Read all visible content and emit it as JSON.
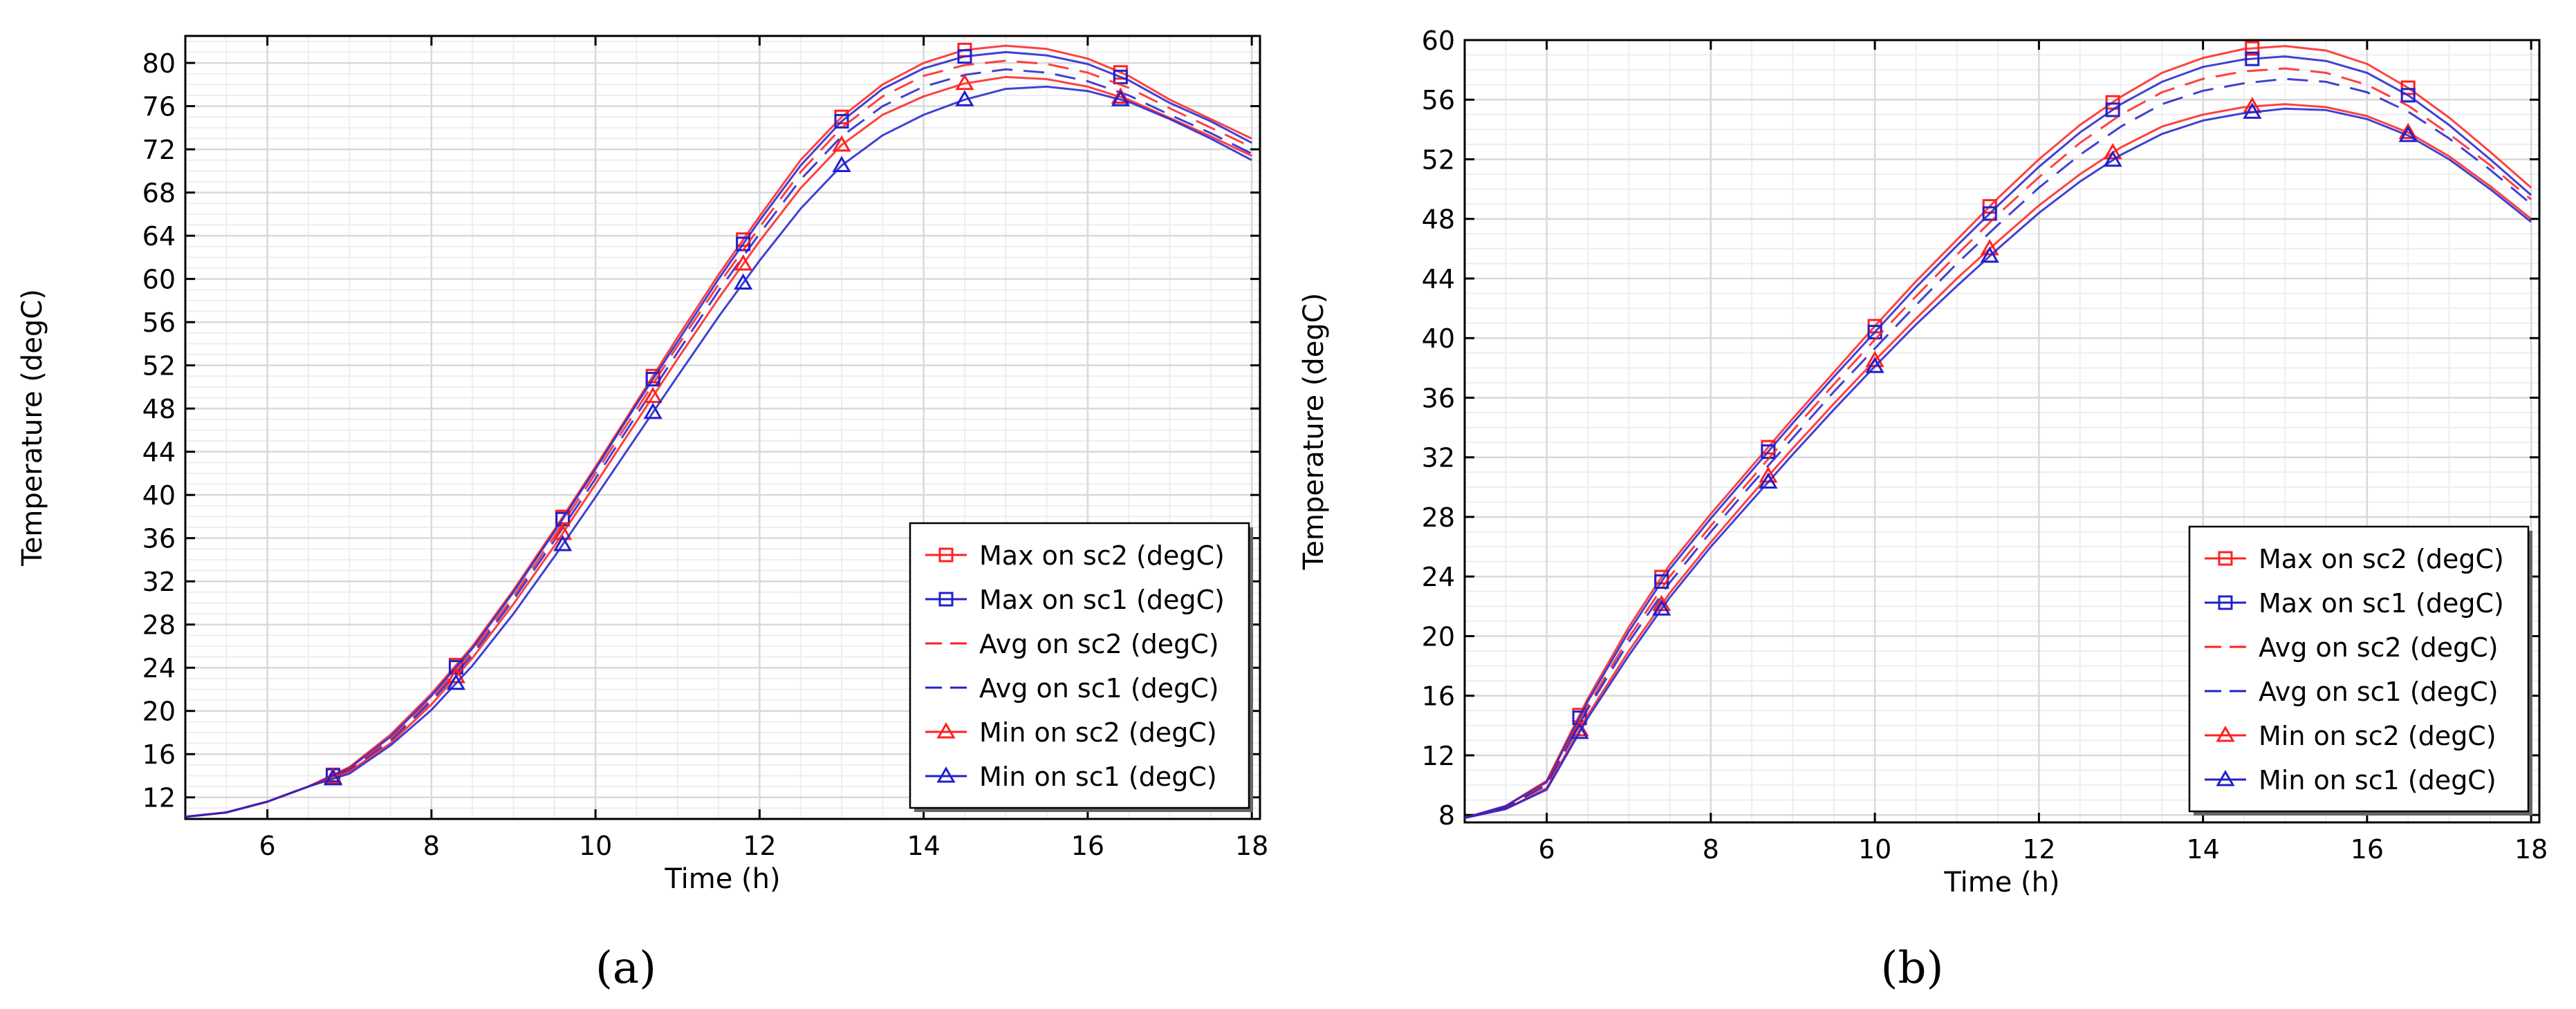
{
  "colors": {
    "sc2": "#ff2020",
    "sc1": "#2020cc",
    "grid": "#d9d9d9",
    "grid_minor": "#eeeeee",
    "axis": "#000000"
  },
  "chart_data": [
    {
      "type": "line",
      "panel_label": "(a)",
      "xlabel": "Time (h)",
      "ylabel": "Temperature (degC)",
      "xlim": [
        5,
        18.1
      ],
      "ylim": [
        10,
        82.5
      ],
      "xticks": [
        6,
        8,
        10,
        12,
        14,
        16,
        18
      ],
      "yticks": [
        12,
        16,
        20,
        24,
        28,
        32,
        36,
        40,
        44,
        48,
        52,
        56,
        60,
        64,
        68,
        72,
        76,
        80
      ],
      "x": [
        5,
        5.5,
        6,
        6.5,
        7,
        7.5,
        8,
        8.5,
        9,
        9.5,
        10,
        10.5,
        11,
        11.5,
        12,
        12.5,
        13,
        13.5,
        14,
        14.5,
        15,
        15.5,
        16,
        16.5,
        17,
        17.5,
        18
      ],
      "marker_x": [
        6.8,
        8.3,
        9.6,
        10.7,
        11.8,
        13.0,
        14.5,
        16.4
      ],
      "series": [
        {
          "name": "Max on sc2 (degC)",
          "color": "#ff2020",
          "dash": "solid",
          "marker": "square",
          "values": [
            10.2,
            10.6,
            11.6,
            13.0,
            14.8,
            17.8,
            21.6,
            26.0,
            31.2,
            36.8,
            42.6,
            48.6,
            54.6,
            60.4,
            65.8,
            71.0,
            75.0,
            78.0,
            80.0,
            81.2,
            81.6,
            81.3,
            80.4,
            78.8,
            76.6,
            74.8,
            73.0
          ]
        },
        {
          "name": "Max on sc1 (degC)",
          "color": "#2020cc",
          "dash": "solid",
          "marker": "square",
          "values": [
            10.2,
            10.6,
            11.6,
            13.0,
            14.7,
            17.6,
            21.4,
            25.8,
            31.0,
            36.6,
            42.4,
            48.4,
            54.2,
            60.0,
            65.4,
            70.5,
            74.6,
            77.6,
            79.5,
            80.6,
            81.0,
            80.7,
            79.9,
            78.4,
            76.3,
            74.6,
            72.6
          ]
        },
        {
          "name": "Avg on sc2 (degC)",
          "color": "#ff2020",
          "dash": "dash",
          "marker": "none",
          "values": [
            10.2,
            10.6,
            11.6,
            13.0,
            14.6,
            17.4,
            21.1,
            25.5,
            30.6,
            36.2,
            42.0,
            47.9,
            53.8,
            59.5,
            64.8,
            69.9,
            74.0,
            76.9,
            78.8,
            79.8,
            80.2,
            79.9,
            79.1,
            77.7,
            75.8,
            74.0,
            72.2
          ]
        },
        {
          "name": "Avg on sc1 (degC)",
          "color": "#2020cc",
          "dash": "dash",
          "marker": "none",
          "values": [
            10.2,
            10.6,
            11.6,
            13.0,
            14.5,
            17.2,
            20.9,
            25.2,
            30.3,
            35.8,
            41.5,
            47.4,
            53.2,
            58.9,
            64.2,
            69.2,
            73.2,
            76.0,
            77.8,
            78.9,
            79.4,
            79.1,
            78.3,
            77.0,
            75.2,
            73.5,
            71.6
          ]
        },
        {
          "name": "Min on sc2 (degC)",
          "color": "#ff2020",
          "dash": "solid",
          "marker": "triangle",
          "values": [
            10.2,
            10.6,
            11.6,
            13.0,
            14.4,
            17.0,
            20.6,
            24.9,
            29.9,
            35.3,
            41.0,
            46.8,
            52.6,
            58.2,
            63.5,
            68.4,
            72.4,
            75.2,
            76.9,
            78.1,
            78.7,
            78.5,
            77.8,
            76.6,
            74.9,
            73.2,
            71.4
          ]
        },
        {
          "name": "Min on sc1 (degC)",
          "color": "#2020cc",
          "dash": "solid",
          "marker": "triangle",
          "values": [
            10.2,
            10.6,
            11.6,
            13.0,
            14.2,
            16.8,
            20.1,
            24.2,
            29.0,
            34.3,
            39.8,
            45.4,
            51.0,
            56.5,
            61.7,
            66.5,
            70.5,
            73.3,
            75.2,
            76.6,
            77.6,
            77.8,
            77.4,
            76.4,
            74.8,
            73.0,
            71.0
          ]
        }
      ],
      "legend": "bottom-right"
    },
    {
      "type": "line",
      "panel_label": "(b)",
      "xlabel": "Time (h)",
      "ylabel": "Temperature (degC)",
      "xlim": [
        5,
        18.1
      ],
      "ylim": [
        7.5,
        60
      ],
      "xticks": [
        6,
        8,
        10,
        12,
        14,
        16,
        18
      ],
      "yticks": [
        8,
        12,
        16,
        20,
        24,
        28,
        32,
        36,
        40,
        44,
        48,
        52,
        56,
        60
      ],
      "x": [
        5,
        5.5,
        6,
        6.5,
        7,
        7.5,
        8,
        8.5,
        9,
        9.5,
        10,
        10.5,
        11,
        11.5,
        12,
        12.5,
        13,
        13.5,
        14,
        14.5,
        15,
        15.5,
        16,
        16.5,
        17,
        17.5,
        18
      ],
      "marker_x": [
        6.4,
        7.4,
        8.7,
        10.0,
        11.4,
        12.9,
        14.6,
        16.5
      ],
      "series": [
        {
          "name": "Max on sc2 (degC)",
          "color": "#ff2020",
          "dash": "solid",
          "marker": "square",
          "values": [
            7.8,
            8.6,
            10.3,
            15.8,
            20.6,
            24.8,
            28.2,
            31.4,
            34.6,
            37.7,
            40.8,
            43.8,
            46.6,
            49.4,
            52.0,
            54.3,
            56.2,
            57.8,
            58.8,
            59.4,
            59.6,
            59.3,
            58.4,
            56.8,
            54.8,
            52.5,
            50.1
          ]
        },
        {
          "name": "Max on sc1 (degC)",
          "color": "#2020cc",
          "dash": "solid",
          "marker": "square",
          "values": [
            7.8,
            8.6,
            10.2,
            15.6,
            20.3,
            24.5,
            27.9,
            31.1,
            34.3,
            37.4,
            40.4,
            43.4,
            46.2,
            48.9,
            51.5,
            53.8,
            55.7,
            57.2,
            58.2,
            58.7,
            58.9,
            58.6,
            57.8,
            56.3,
            54.3,
            52.0,
            49.6
          ]
        },
        {
          "name": "Avg on sc2 (degC)",
          "color": "#ff2020",
          "dash": "dash",
          "marker": "none",
          "values": [
            7.8,
            8.5,
            10.1,
            15.3,
            19.9,
            24.0,
            27.4,
            30.6,
            33.8,
            36.9,
            39.9,
            42.8,
            45.6,
            48.3,
            50.8,
            53.1,
            55.0,
            56.5,
            57.4,
            57.9,
            58.1,
            57.8,
            57.0,
            55.6,
            53.7,
            51.6,
            49.3
          ]
        },
        {
          "name": "Avg on sc1 (degC)",
          "color": "#2020cc",
          "dash": "dash",
          "marker": "none",
          "values": [
            7.8,
            8.5,
            10.0,
            15.1,
            19.6,
            23.6,
            27.0,
            30.2,
            33.3,
            36.4,
            39.3,
            42.2,
            45.0,
            47.6,
            50.1,
            52.3,
            54.2,
            55.7,
            56.6,
            57.1,
            57.4,
            57.2,
            56.5,
            55.2,
            53.4,
            51.3,
            49.0
          ]
        },
        {
          "name": "Min on sc2 (degC)",
          "color": "#ff2020",
          "dash": "solid",
          "marker": "triangle",
          "values": [
            7.8,
            8.4,
            9.8,
            14.7,
            19.0,
            22.9,
            26.3,
            29.5,
            32.6,
            35.6,
            38.5,
            41.3,
            44.0,
            46.5,
            48.9,
            51.0,
            52.8,
            54.2,
            55.0,
            55.5,
            55.7,
            55.5,
            54.9,
            53.8,
            52.2,
            50.2,
            48.0
          ]
        },
        {
          "name": "Min on sc1 (degC)",
          "color": "#2020cc",
          "dash": "solid",
          "marker": "triangle",
          "values": [
            7.8,
            8.4,
            9.7,
            14.5,
            18.7,
            22.6,
            26.0,
            29.1,
            32.2,
            35.2,
            38.1,
            40.9,
            43.5,
            46.0,
            48.4,
            50.5,
            52.3,
            53.7,
            54.6,
            55.1,
            55.4,
            55.3,
            54.7,
            53.6,
            52.0,
            50.0,
            47.8
          ]
        }
      ],
      "legend": "bottom-right"
    }
  ]
}
